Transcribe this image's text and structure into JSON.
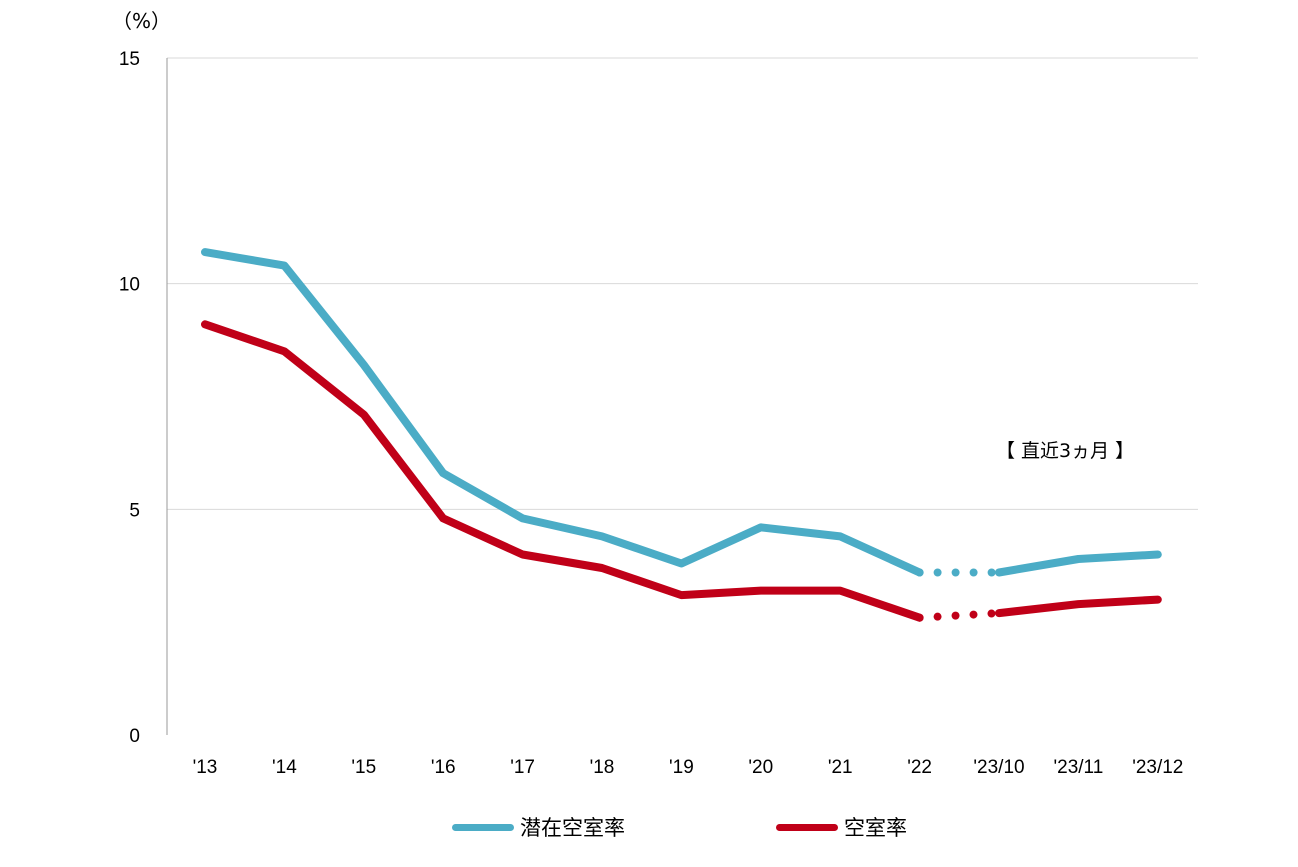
{
  "chart_data": {
    "type": "line",
    "unit_label": "（%）",
    "annotation": "【 直近3ヵ月 】",
    "categories": [
      "'13",
      "'14",
      "'15",
      "'16",
      "'17",
      "'18",
      "'19",
      "'20",
      "'21",
      "'22",
      "'23/10",
      "'23/11",
      "'23/12"
    ],
    "ylim": [
      0,
      15
    ],
    "yticks": [
      0,
      5,
      10,
      15
    ],
    "grid": true,
    "legend_position": "bottom",
    "series": [
      {
        "name": "潜在空室率",
        "color": "#4BACC6",
        "values": [
          10.7,
          10.4,
          8.2,
          5.8,
          4.8,
          4.4,
          3.8,
          4.6,
          4.4,
          3.6,
          3.6,
          3.9,
          4.0
        ]
      },
      {
        "name": "空室率",
        "color": "#C00018",
        "values": [
          9.1,
          8.5,
          7.1,
          4.8,
          4.0,
          3.7,
          3.1,
          3.2,
          3.2,
          2.6,
          2.7,
          2.9,
          3.0
        ]
      }
    ]
  }
}
